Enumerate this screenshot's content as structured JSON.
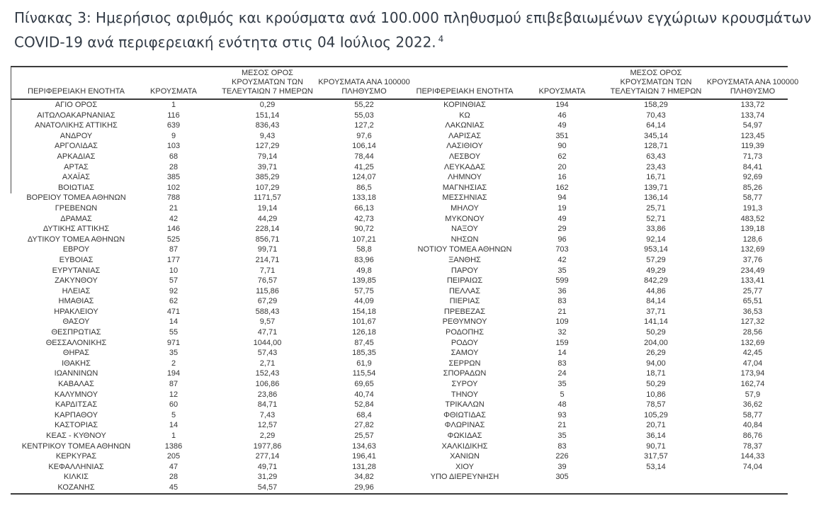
{
  "title": {
    "line1": "Πίνακας 3: Ημερήσιος αριθμός και κρούσματα ανά 100.000 πληθυσμού επιβεβαιωμένων εγχώριων κρουσμάτων",
    "line2": "COVID-19 ανά περιφερειακή ενότητα στις 04 Ιούλιος 2022.",
    "footnote_marker": "4"
  },
  "table": {
    "headers": {
      "region": "ΠΕΡΙΦΕΡΕΙΑΚΗ ΕΝΟΤΗΤΑ",
      "cases": "ΚΡΟΥΣΜΑΤΑ",
      "avg7_lines": [
        "ΜΕΣΟΣ ΟΡΟΣ",
        "ΚΡΟΥΣΜΑΤΩΝ ΤΩΝ",
        "ΤΕΛΕΥΤΑΙΩΝ 7 ΗΜΕΡΩΝ"
      ],
      "per100k_lines": [
        "ΚΡΟΥΣΜΑΤΑ ΑΝΑ 100000",
        "ΠΛΗΘΥΣΜΟ"
      ]
    },
    "left_rows": [
      [
        "ΑΓΙΟ ΟΡΟΣ",
        "1",
        "0,29",
        "55,22"
      ],
      [
        "ΑΙΤΩΛΟΑΚΑΡΝΑΝΙΑΣ",
        "116",
        "151,14",
        "55,03"
      ],
      [
        "ΑΝΑΤΟΛΙΚΗΣ ΑΤΤΙΚΗΣ",
        "639",
        "836,43",
        "127,2"
      ],
      [
        "ΑΝΔΡΟΥ",
        "9",
        "9,43",
        "97,6"
      ],
      [
        "ΑΡΓΟΛΙΔΑΣ",
        "103",
        "127,29",
        "106,14"
      ],
      [
        "ΑΡΚΑΔΙΑΣ",
        "68",
        "79,14",
        "78,44"
      ],
      [
        "ΑΡΤΑΣ",
        "28",
        "39,71",
        "41,25"
      ],
      [
        "ΑΧΑΪΑΣ",
        "385",
        "385,29",
        "124,07"
      ],
      [
        "ΒΟΙΩΤΙΑΣ",
        "102",
        "107,29",
        "86,5"
      ],
      [
        "ΒΟΡΕΙΟΥ ΤΟΜΕΑ ΑΘΗΝΩΝ",
        "788",
        "1171,57",
        "133,18"
      ],
      [
        "ΓΡΕΒΕΝΩΝ",
        "21",
        "19,14",
        "66,13"
      ],
      [
        "ΔΡΑΜΑΣ",
        "42",
        "44,29",
        "42,73"
      ],
      [
        "ΔΥΤΙΚΗΣ ΑΤΤΙΚΗΣ",
        "146",
        "228,14",
        "90,72"
      ],
      [
        "ΔΥΤΙΚΟΥ ΤΟΜΕΑ ΑΘΗΝΩΝ",
        "525",
        "856,71",
        "107,21"
      ],
      [
        "ΕΒΡΟΥ",
        "87",
        "99,71",
        "58,8"
      ],
      [
        "ΕΥΒΟΙΑΣ",
        "177",
        "214,71",
        "83,96"
      ],
      [
        "ΕΥΡΥΤΑΝΙΑΣ",
        "10",
        "7,71",
        "49,8"
      ],
      [
        "ΖΑΚΥΝΘΟΥ",
        "57",
        "76,57",
        "139,85"
      ],
      [
        "ΗΛΕΙΑΣ",
        "92",
        "115,86",
        "57,75"
      ],
      [
        "ΗΜΑΘΙΑΣ",
        "62",
        "67,29",
        "44,09"
      ],
      [
        "ΗΡΑΚΛΕΙΟΥ",
        "471",
        "588,43",
        "154,18"
      ],
      [
        "ΘΑΣΟΥ",
        "14",
        "9,57",
        "101,67"
      ],
      [
        "ΘΕΣΠΡΩΤΙΑΣ",
        "55",
        "47,71",
        "126,18"
      ],
      [
        "ΘΕΣΣΑΛΟΝΙΚΗΣ",
        "971",
        "1044,00",
        "87,45"
      ],
      [
        "ΘΗΡΑΣ",
        "35",
        "57,43",
        "185,35"
      ],
      [
        "ΙΘΑΚΗΣ",
        "2",
        "2,71",
        "61,9"
      ],
      [
        "ΙΩΑΝΝΙΝΩΝ",
        "194",
        "152,43",
        "115,54"
      ],
      [
        "ΚΑΒΑΛΑΣ",
        "87",
        "106,86",
        "69,65"
      ],
      [
        "ΚΑΛΥΜΝΟΥ",
        "12",
        "23,86",
        "40,74"
      ],
      [
        "ΚΑΡΔΙΤΣΑΣ",
        "60",
        "84,71",
        "52,84"
      ],
      [
        "ΚΑΡΠΑΘΟΥ",
        "5",
        "7,43",
        "68,4"
      ],
      [
        "ΚΑΣΤΟΡΙΑΣ",
        "14",
        "12,57",
        "27,82"
      ],
      [
        "ΚΕΑΣ - ΚΥΘΝΟΥ",
        "1",
        "2,29",
        "25,57"
      ],
      [
        "ΚΕΝΤΡΙΚΟΥ ΤΟΜΕΑ ΑΘΗΝΩΝ",
        "1386",
        "1977,86",
        "134,63"
      ],
      [
        "ΚΕΡΚΥΡΑΣ",
        "205",
        "277,14",
        "196,41"
      ],
      [
        "ΚΕΦΑΛΛΗΝΙΑΣ",
        "47",
        "49,71",
        "131,28"
      ],
      [
        "ΚΙΛΚΙΣ",
        "28",
        "31,29",
        "34,82"
      ],
      [
        "ΚΟΖΑΝΗΣ",
        "45",
        "54,57",
        "29,96"
      ]
    ],
    "right_rows": [
      [
        "ΚΟΡΙΝΘΙΑΣ",
        "194",
        "158,29",
        "133,72"
      ],
      [
        "ΚΩ",
        "46",
        "70,43",
        "133,74"
      ],
      [
        "ΛΑΚΩΝΙΑΣ",
        "49",
        "64,14",
        "54,97"
      ],
      [
        "ΛΑΡΙΣΑΣ",
        "351",
        "345,14",
        "123,45"
      ],
      [
        "ΛΑΣΙΘΙΟΥ",
        "90",
        "128,71",
        "119,39"
      ],
      [
        "ΛΕΣΒΟΥ",
        "62",
        "63,43",
        "71,73"
      ],
      [
        "ΛΕΥΚΑΔΑΣ",
        "20",
        "23,43",
        "84,41"
      ],
      [
        "ΛΗΜΝΟΥ",
        "16",
        "16,71",
        "92,69"
      ],
      [
        "ΜΑΓΝΗΣΙΑΣ",
        "162",
        "139,71",
        "85,26"
      ],
      [
        "ΜΕΣΣΗΝΙΑΣ",
        "94",
        "136,14",
        "58,77"
      ],
      [
        "ΜΗΛΟΥ",
        "19",
        "25,71",
        "191,3"
      ],
      [
        "ΜΥΚΟΝΟΥ",
        "49",
        "52,71",
        "483,52"
      ],
      [
        "ΝΑΞΟΥ",
        "29",
        "33,86",
        "139,18"
      ],
      [
        "ΝΗΣΩΝ",
        "96",
        "92,14",
        "128,6"
      ],
      [
        "ΝΟΤΙΟΥ ΤΟΜΕΑ ΑΘΗΝΩΝ",
        "703",
        "953,14",
        "132,69"
      ],
      [
        "ΞΑΝΘΗΣ",
        "42",
        "57,29",
        "37,76"
      ],
      [
        "ΠΑΡΟΥ",
        "35",
        "49,29",
        "234,49"
      ],
      [
        "ΠΕΙΡΑΙΩΣ",
        "599",
        "842,29",
        "133,41"
      ],
      [
        "ΠΕΛΛΑΣ",
        "36",
        "44,86",
        "25,77"
      ],
      [
        "ΠΙΕΡΙΑΣ",
        "83",
        "84,14",
        "65,51"
      ],
      [
        "ΠΡΕΒΕΖΑΣ",
        "21",
        "37,71",
        "36,53"
      ],
      [
        "ΡΕΘΥΜΝΟΥ",
        "109",
        "141,14",
        "127,32"
      ],
      [
        "ΡΟΔΟΠΗΣ",
        "32",
        "50,29",
        "28,56"
      ],
      [
        "ΡΟΔΟΥ",
        "159",
        "204,00",
        "132,69"
      ],
      [
        "ΣΑΜΟΥ",
        "14",
        "26,29",
        "42,45"
      ],
      [
        "ΣΕΡΡΩΝ",
        "83",
        "94,00",
        "47,04"
      ],
      [
        "ΣΠΟΡΑΔΩΝ",
        "24",
        "18,71",
        "173,94"
      ],
      [
        "ΣΥΡΟΥ",
        "35",
        "50,29",
        "162,74"
      ],
      [
        "ΤΗΝΟΥ",
        "5",
        "10,86",
        "57,9"
      ],
      [
        "ΤΡΙΚΑΛΩΝ",
        "48",
        "78,57",
        "36,62"
      ],
      [
        "ΦΘΙΩΤΙΔΑΣ",
        "93",
        "105,29",
        "58,77"
      ],
      [
        "ΦΛΩΡΙΝΑΣ",
        "21",
        "20,71",
        "40,84"
      ],
      [
        "ΦΩΚΙΔΑΣ",
        "35",
        "36,14",
        "86,76"
      ],
      [
        "ΧΑΛΚΙΔΙΚΗΣ",
        "83",
        "90,71",
        "78,37"
      ],
      [
        "ΧΑΝΙΩΝ",
        "226",
        "317,57",
        "144,33"
      ],
      [
        "ΧΙΟΥ",
        "39",
        "53,14",
        "74,04"
      ],
      [
        "ΥΠΟ ΔΙΕΡΕΥΝΗΣΗ",
        "305",
        "",
        ""
      ]
    ]
  },
  "colors": {
    "title_text": "#323b46",
    "table_text": "#343434",
    "border_line": "#3c3c3c",
    "background": "#ffffff"
  }
}
